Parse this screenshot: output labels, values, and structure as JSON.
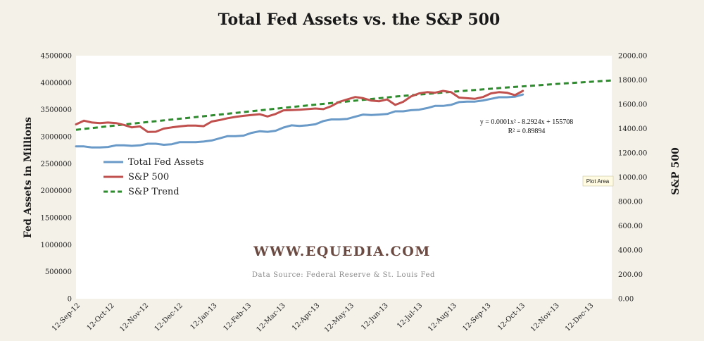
{
  "chart_data": {
    "type": "line",
    "title": "Total Fed Assets vs. the S&P 500",
    "ylabel_left": "Fed Assets in Millions",
    "ylabel_right": "S&P 500",
    "ylim_left": [
      0,
      4500000
    ],
    "ylim_right": [
      0,
      2000
    ],
    "yticks_left": [
      "4500000",
      "4000000",
      "3500000",
      "3000000",
      "2500000",
      "2000000",
      "1500000",
      "1000000",
      "500000",
      "0"
    ],
    "yticks_right": [
      "2000.00",
      "1800.00",
      "1600.00",
      "1400.00",
      "1200.00",
      "1000.00",
      "800.00",
      "600.00",
      "400.00",
      "200.00",
      "0.00"
    ],
    "x_tick_labels": [
      "12-Sep-12",
      "12-Oct-12",
      "12-Nov-12",
      "12-Dec-12",
      "12-Jan-13",
      "12-Feb-13",
      "12-Mar-13",
      "12-Apr-13",
      "12-May-13",
      "12-Jun-13",
      "12-Jul-13",
      "12-Aug-13",
      "12-Sep-13",
      "12-Oct-13",
      "12-Nov-13",
      "12-Dec-13"
    ],
    "x_range_days": [
      0,
      470
    ],
    "grid": false,
    "legend_position": "left-middle",
    "series": [
      {
        "name": "Total Fed Assets",
        "axis": "left",
        "color": "#6a9ac8",
        "x_days": [
          0,
          7,
          14,
          21,
          28,
          35,
          42,
          49,
          56,
          63,
          70,
          77,
          84,
          91,
          98,
          105,
          112,
          119,
          126,
          133,
          140,
          147,
          154,
          161,
          168,
          175,
          182,
          189,
          196,
          203,
          210,
          217,
          224,
          231,
          238,
          245,
          252,
          259,
          266,
          273,
          280,
          287,
          294,
          301,
          308,
          315,
          322,
          329,
          336,
          343,
          350,
          357,
          364,
          371,
          378,
          385,
          392
        ],
        "values": [
          2820000,
          2820000,
          2800000,
          2800000,
          2810000,
          2840000,
          2840000,
          2830000,
          2840000,
          2870000,
          2870000,
          2850000,
          2860000,
          2900000,
          2900000,
          2900000,
          2910000,
          2930000,
          2970000,
          3010000,
          3010000,
          3020000,
          3070000,
          3100000,
          3090000,
          3110000,
          3170000,
          3210000,
          3200000,
          3210000,
          3230000,
          3290000,
          3320000,
          3320000,
          3330000,
          3370000,
          3410000,
          3400000,
          3410000,
          3420000,
          3470000,
          3470000,
          3490000,
          3500000,
          3530000,
          3570000,
          3570000,
          3590000,
          3640000,
          3650000,
          3650000,
          3670000,
          3700000,
          3730000,
          3730000,
          3740000,
          3780000
        ]
      },
      {
        "name": "S&P 500",
        "axis": "right",
        "color": "#c0504d",
        "x_days": [
          0,
          7,
          14,
          21,
          28,
          35,
          42,
          49,
          56,
          63,
          70,
          77,
          84,
          91,
          98,
          105,
          112,
          119,
          126,
          133,
          140,
          147,
          154,
          161,
          168,
          175,
          182,
          189,
          196,
          203,
          210,
          217,
          224,
          231,
          238,
          245,
          252,
          259,
          266,
          273,
          280,
          287,
          294,
          301,
          308,
          315,
          322,
          329,
          336,
          343,
          350,
          357,
          364,
          371,
          378,
          385,
          392
        ],
        "values": [
          1435,
          1465,
          1450,
          1445,
          1450,
          1445,
          1430,
          1410,
          1418,
          1372,
          1374,
          1400,
          1410,
          1418,
          1425,
          1425,
          1420,
          1458,
          1470,
          1485,
          1496,
          1505,
          1512,
          1518,
          1500,
          1520,
          1550,
          1552,
          1555,
          1560,
          1565,
          1560,
          1585,
          1620,
          1640,
          1660,
          1650,
          1630,
          1625,
          1640,
          1595,
          1620,
          1665,
          1690,
          1700,
          1695,
          1710,
          1700,
          1655,
          1650,
          1645,
          1660,
          1690,
          1700,
          1695,
          1675,
          1710
        ]
      },
      {
        "name": "S&P Trend",
        "axis": "right",
        "color": "#2e8b2e",
        "dashed": true,
        "equation": "y = 0.0001x² - 8.2924x + 155708",
        "x_days": [
          0,
          47,
          94,
          141,
          188,
          235,
          282,
          329,
          376,
          423,
          470
        ],
        "values": [
          1390,
          1438,
          1484,
          1530,
          1576,
          1620,
          1665,
          1702,
          1737,
          1768,
          1796
        ]
      }
    ],
    "annotations": {
      "equation": "y = 0.0001x² - 8.2924x + 155708",
      "r_squared": "R² = 0.89894",
      "tooltip": "Plot Area",
      "watermark": "WWW.EQUEDIA.COM",
      "source": "Data Source: Federal Reserve & St. Louis Fed"
    }
  }
}
